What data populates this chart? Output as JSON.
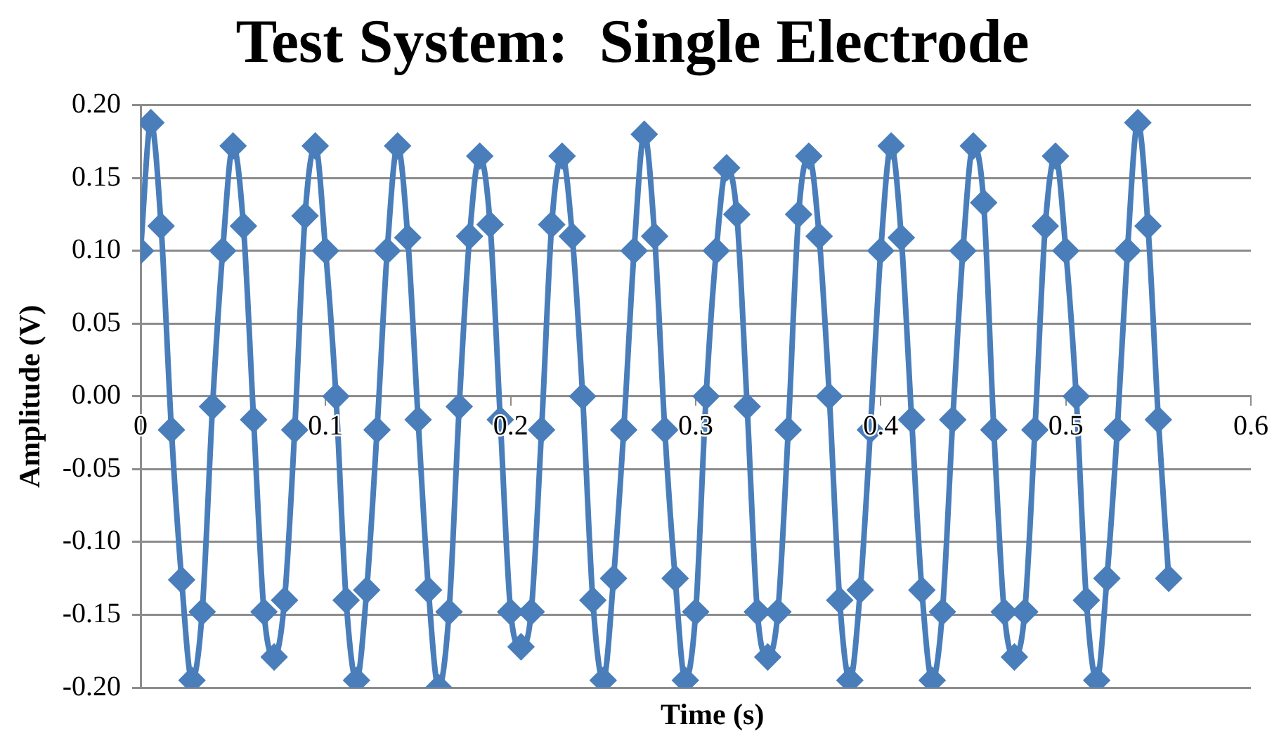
{
  "chart_data": {
    "type": "line",
    "title": "Test System:  Single Electrode",
    "xlabel": "Time (s)",
    "ylabel": "Amplitude (V)",
    "x": [
      0,
      0.0056,
      0.0111,
      0.0167,
      0.0222,
      0.0278,
      0.0333,
      0.0389,
      0.0444,
      0.05,
      0.0556,
      0.0611,
      0.0667,
      0.0722,
      0.0778,
      0.0833,
      0.0889,
      0.0944,
      0.1,
      0.1056,
      0.1111,
      0.1167,
      0.1222,
      0.1278,
      0.1333,
      0.1389,
      0.1444,
      0.15,
      0.1556,
      0.1611,
      0.1667,
      0.1722,
      0.1778,
      0.1833,
      0.1889,
      0.1944,
      0.2,
      0.2056,
      0.2111,
      0.2167,
      0.2222,
      0.2278,
      0.2333,
      0.2389,
      0.2444,
      0.25,
      0.2556,
      0.2611,
      0.2667,
      0.2722,
      0.2778,
      0.2833,
      0.2889,
      0.2944,
      0.3,
      0.3056,
      0.3111,
      0.3167,
      0.3222,
      0.3278,
      0.3333,
      0.3389,
      0.3444,
      0.35,
      0.3556,
      0.3611,
      0.3667,
      0.3722,
      0.3778,
      0.3833,
      0.3889,
      0.3944,
      0.4,
      0.4056,
      0.4111,
      0.4167,
      0.4222,
      0.4278,
      0.4333,
      0.4389,
      0.4444,
      0.45,
      0.4556,
      0.4611,
      0.4667,
      0.4722,
      0.4778,
      0.4833,
      0.4889,
      0.4944,
      0.5,
      0.5056,
      0.5111,
      0.5167,
      0.5222,
      0.5278,
      0.5333,
      0.5389,
      0.5444,
      0.55,
      0.5556
    ],
    "series": [
      {
        "color": "#4a7ebb",
        "values": [
          0.1,
          0.188,
          0.117,
          -0.023,
          -0.126,
          -0.195,
          -0.148,
          -0.007,
          0.1,
          0.172,
          0.117,
          -0.016,
          -0.148,
          -0.179,
          -0.14,
          -0.023,
          0.124,
          0.172,
          0.1,
          0.0,
          -0.14,
          -0.195,
          -0.133,
          -0.023,
          0.1,
          0.172,
          0.109,
          -0.016,
          -0.133,
          -0.2,
          -0.148,
          -0.007,
          0.11,
          0.165,
          0.118,
          -0.016,
          -0.148,
          -0.172,
          -0.148,
          -0.023,
          0.118,
          0.165,
          0.11,
          0.0,
          -0.14,
          -0.195,
          -0.125,
          -0.023,
          0.1,
          0.18,
          0.11,
          -0.023,
          -0.125,
          -0.195,
          -0.148,
          0.0,
          0.1,
          0.157,
          0.125,
          -0.007,
          -0.148,
          -0.179,
          -0.148,
          -0.023,
          0.125,
          0.165,
          0.11,
          0.0,
          -0.14,
          -0.195,
          -0.133,
          -0.023,
          0.1,
          0.172,
          0.109,
          -0.016,
          -0.133,
          -0.195,
          -0.148,
          -0.016,
          0.1,
          0.172,
          0.133,
          -0.023,
          -0.148,
          -0.179,
          -0.148,
          -0.023,
          0.117,
          0.165,
          0.1,
          0.0,
          -0.14,
          -0.195,
          -0.125,
          -0.023,
          0.1,
          0.188,
          0.117,
          -0.016,
          -0.125
        ]
      }
    ],
    "xlim": [
      0,
      0.6
    ],
    "xticks": [
      0,
      0.1,
      0.2,
      0.3,
      0.4,
      0.5,
      0.6
    ],
    "ylim": [
      -0.2,
      0.2
    ],
    "yticks": [
      {
        "value": -0.2,
        "label": "-0.20"
      },
      {
        "value": -0.15,
        "label": "-0.15"
      },
      {
        "value": -0.1,
        "label": "-0.10"
      },
      {
        "value": -0.05,
        "label": "-0.05"
      },
      {
        "value": 0,
        "label": "0.00"
      },
      {
        "value": 0.05,
        "label": "0.05"
      },
      {
        "value": 0.1,
        "label": "0.10"
      },
      {
        "value": 0.15,
        "label": "0.15"
      },
      {
        "value": 0.2,
        "label": "0.20"
      }
    ],
    "grid": "y",
    "legend": false,
    "marker": "diamond",
    "line_style": "solid"
  }
}
